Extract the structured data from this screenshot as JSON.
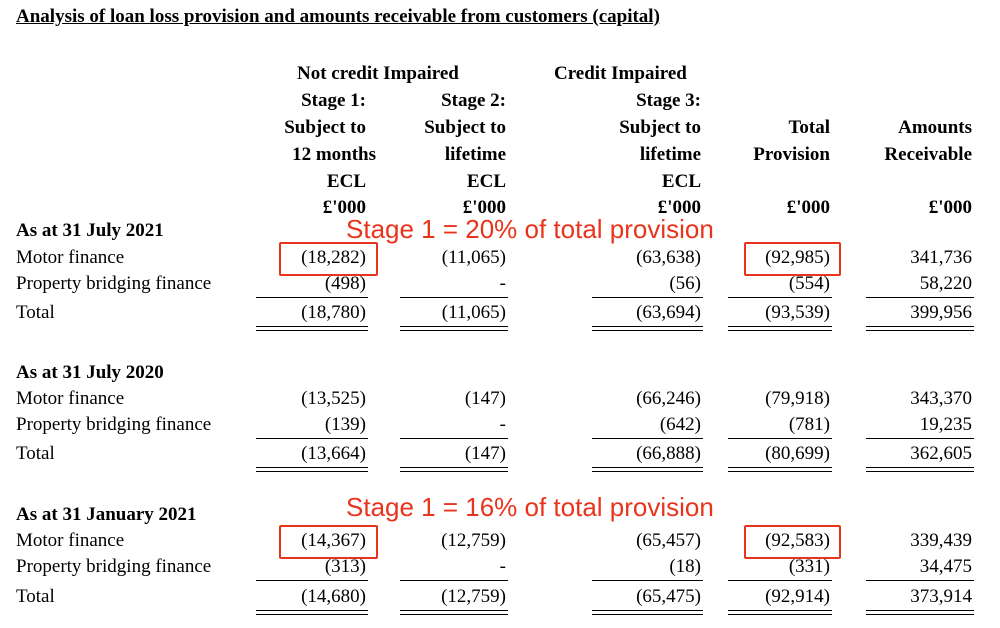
{
  "title": "Analysis of loan loss provision and amounts receivable from customers (capital)",
  "headers": {
    "group_not_impaired": "Not credit Impaired",
    "group_impaired": "Credit Impaired",
    "stage1": [
      "Stage 1:",
      "Subject to",
      "12 months",
      "ECL",
      "£'000"
    ],
    "stage2": [
      "Stage 2:",
      "Subject to",
      "lifetime",
      "ECL",
      "£'000"
    ],
    "stage3": [
      "Stage 3:",
      "Subject to",
      "lifetime",
      "ECL",
      "£'000"
    ],
    "total": [
      "Total",
      "Provision",
      "£'000"
    ],
    "receivable": [
      "Amounts",
      "Receivable",
      "£'000"
    ]
  },
  "sections": [
    {
      "heading": "As at 31 July 2021",
      "rows": [
        {
          "label": "Motor finance",
          "s1": "(18,282)",
          "s2": "(11,065)",
          "s3": "(63,638)",
          "total": "(92,985)",
          "recv": "341,736"
        },
        {
          "label": "Property bridging finance",
          "s1": "(498)",
          "s2": "-",
          "s3": "(56)",
          "total": "(554)",
          "recv": "58,220"
        },
        {
          "label": "Total",
          "s1": "(18,780)",
          "s2": "(11,065)",
          "s3": "(63,694)",
          "total": "(93,539)",
          "recv": "399,956"
        }
      ]
    },
    {
      "heading": "As at 31 July 2020",
      "rows": [
        {
          "label": "Motor finance",
          "s1": "(13,525)",
          "s2": "(147)",
          "s3": "(66,246)",
          "total": "(79,918)",
          "recv": "343,370"
        },
        {
          "label": "Property bridging finance",
          "s1": "(139)",
          "s2": "-",
          "s3": "(642)",
          "total": "(781)",
          "recv": "19,235"
        },
        {
          "label": "Total",
          "s1": "(13,664)",
          "s2": "(147)",
          "s3": "(66,888)",
          "total": "(80,699)",
          "recv": "362,605"
        }
      ]
    },
    {
      "heading": "As at 31 January 2021",
      "rows": [
        {
          "label": "Motor finance",
          "s1": "(14,367)",
          "s2": "(12,759)",
          "s3": "(65,457)",
          "total": "(92,583)",
          "recv": "339,439"
        },
        {
          "label": "Property bridging finance",
          "s1": "(313)",
          "s2": "-",
          "s3": "(18)",
          "total": "(331)",
          "recv": "34,475"
        },
        {
          "label": "Total",
          "s1": "(14,680)",
          "s2": "(12,759)",
          "s3": "(65,475)",
          "total": "(92,914)",
          "recv": "373,914"
        }
      ]
    }
  ],
  "annotations": {
    "callout_1": "Stage 1 = 20% of total provision",
    "callout_2": "Stage 1 = 16% of total provision",
    "highlight_color": "#e8341c"
  }
}
